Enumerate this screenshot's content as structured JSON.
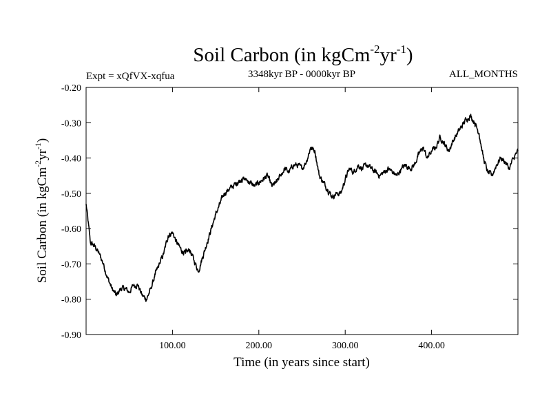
{
  "chart_data": {
    "type": "line",
    "title": "Soil Carbon (in kgCm",
    "title_sup1": "-2",
    "title_mid": "yr",
    "title_sup2": "-1",
    "title_end": ")",
    "left_label": "Expt = xQfVX-xqfua",
    "center_label": "3348kyr BP - 0000kyr BP",
    "right_label": "ALL_MONTHS",
    "xlabel": "Time (in years since start)",
    "ylabel_main": "Soil Carbon (in kgCm",
    "ylabel_sup1": "-2",
    "ylabel_mid": "yr",
    "ylabel_sup2": "-1",
    "ylabel_end": ")",
    "xlim": [
      0,
      500
    ],
    "ylim": [
      -0.9,
      -0.2
    ],
    "xticks": [
      100,
      200,
      300,
      400
    ],
    "xtick_labels": [
      "100.00",
      "200.00",
      "300.00",
      "400.00"
    ],
    "yticks": [
      -0.9,
      -0.8,
      -0.7,
      -0.6,
      -0.5,
      -0.4,
      -0.3,
      -0.2
    ],
    "ytick_labels": [
      "-0.90",
      "-0.80",
      "-0.70",
      "-0.60",
      "-0.50",
      "-0.40",
      "-0.30",
      "-0.20"
    ],
    "line_color": "#000000",
    "series": [
      {
        "name": "Soil Carbon",
        "x": [
          0,
          5,
          10,
          15,
          20,
          25,
          30,
          35,
          40,
          45,
          50,
          55,
          60,
          65,
          70,
          75,
          80,
          85,
          90,
          95,
          100,
          105,
          110,
          115,
          120,
          125,
          130,
          135,
          140,
          145,
          150,
          155,
          160,
          165,
          170,
          175,
          180,
          185,
          190,
          195,
          200,
          205,
          210,
          215,
          220,
          225,
          230,
          235,
          240,
          245,
          250,
          255,
          260,
          265,
          270,
          275,
          280,
          285,
          290,
          295,
          300,
          305,
          310,
          315,
          320,
          325,
          330,
          335,
          340,
          345,
          350,
          355,
          360,
          365,
          370,
          375,
          380,
          385,
          390,
          395,
          400,
          405,
          410,
          415,
          420,
          425,
          430,
          435,
          440,
          445,
          450,
          455,
          460,
          465,
          470,
          475,
          480,
          485,
          490,
          495,
          500
        ],
        "values": [
          -0.53,
          -0.64,
          -0.65,
          -0.67,
          -0.7,
          -0.74,
          -0.77,
          -0.79,
          -0.77,
          -0.77,
          -0.78,
          -0.76,
          -0.76,
          -0.79,
          -0.8,
          -0.77,
          -0.73,
          -0.7,
          -0.67,
          -0.62,
          -0.61,
          -0.64,
          -0.66,
          -0.67,
          -0.66,
          -0.69,
          -0.72,
          -0.68,
          -0.64,
          -0.6,
          -0.56,
          -0.53,
          -0.5,
          -0.49,
          -0.48,
          -0.47,
          -0.46,
          -0.46,
          -0.47,
          -0.48,
          -0.47,
          -0.46,
          -0.45,
          -0.48,
          -0.47,
          -0.45,
          -0.43,
          -0.44,
          -0.42,
          -0.42,
          -0.43,
          -0.41,
          -0.37,
          -0.38,
          -0.45,
          -0.47,
          -0.49,
          -0.51,
          -0.5,
          -0.5,
          -0.46,
          -0.43,
          -0.44,
          -0.42,
          -0.43,
          -0.42,
          -0.43,
          -0.44,
          -0.45,
          -0.44,
          -0.43,
          -0.44,
          -0.45,
          -0.43,
          -0.42,
          -0.43,
          -0.42,
          -0.39,
          -0.37,
          -0.4,
          -0.38,
          -0.37,
          -0.34,
          -0.36,
          -0.38,
          -0.35,
          -0.33,
          -0.31,
          -0.29,
          -0.28,
          -0.3,
          -0.33,
          -0.4,
          -0.44,
          -0.45,
          -0.42,
          -0.4,
          -0.41,
          -0.43,
          -0.4,
          -0.38
        ]
      }
    ]
  }
}
